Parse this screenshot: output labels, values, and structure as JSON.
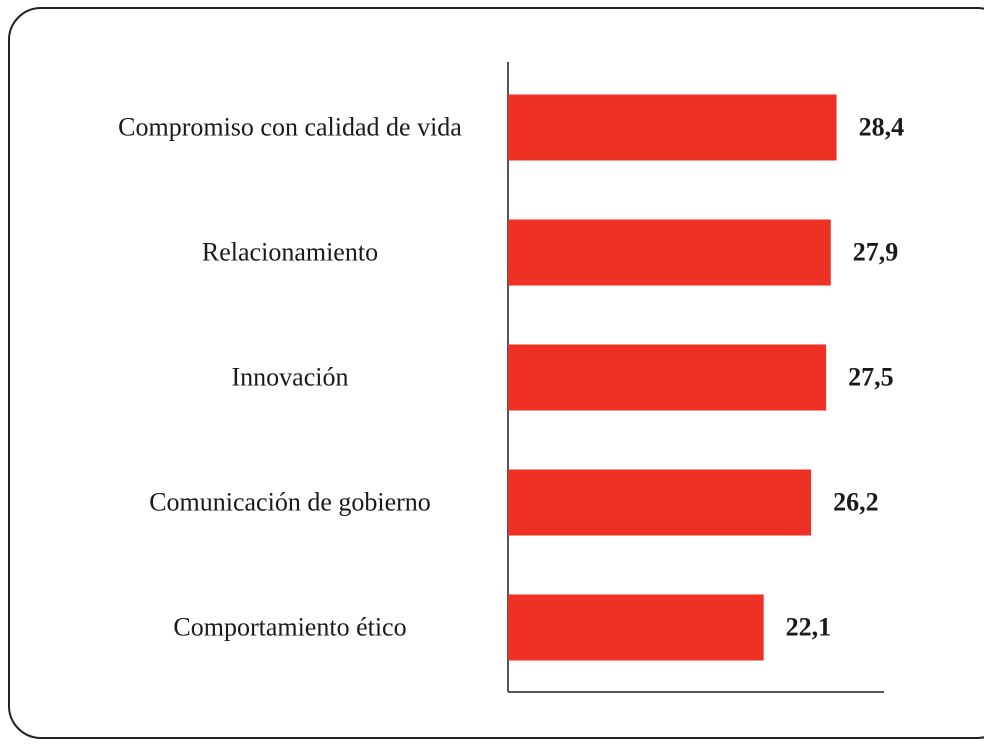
{
  "chart_data": {
    "type": "bar",
    "orientation": "horizontal",
    "categories": [
      "Compromiso con calidad de vida",
      "Relacionamiento",
      "Innovación",
      "Comunicación de gobierno",
      "Comportamiento ético"
    ],
    "values": [
      28.4,
      27.9,
      27.5,
      26.2,
      22.1
    ],
    "value_labels": [
      "28,4",
      "27,9",
      "27,5",
      "26,2",
      "22,1"
    ],
    "color": "#ee3124",
    "xlim": [
      0,
      32.5
    ]
  }
}
